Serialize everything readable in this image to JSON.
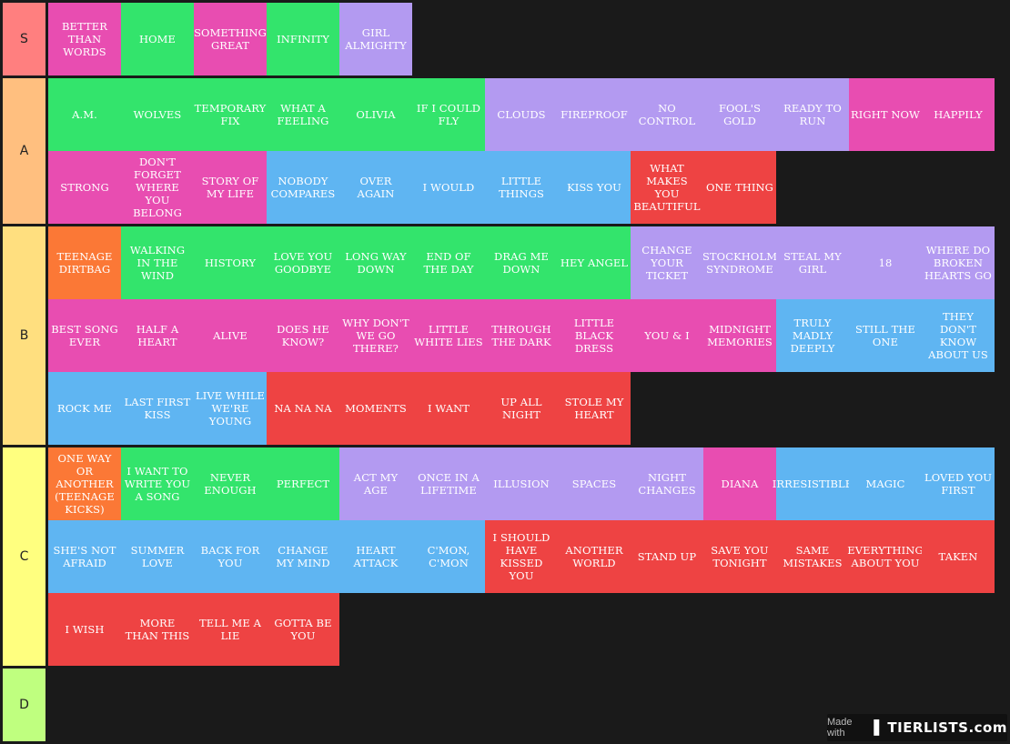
{
  "colors": {
    "pink": "#e84db1",
    "green": "#33e46c",
    "lavender": "#b39af1",
    "blue": "#5fb5f2",
    "red": "#ee4343",
    "orange": "#fb7836"
  },
  "tiers": [
    {
      "label": "S",
      "color": "#ff7f7f",
      "rows": 1,
      "items": [
        {
          "text": "BETTER THAN WORDS",
          "color": "pink"
        },
        {
          "text": "HOME",
          "color": "green"
        },
        {
          "text": "SOMETHING GREAT",
          "color": "pink"
        },
        {
          "text": "INFINITY",
          "color": "green"
        },
        {
          "text": "GIRL ALMIGHTY",
          "color": "lavender"
        }
      ]
    },
    {
      "label": "A",
      "color": "#ffbf7f",
      "rows": 2,
      "items": [
        {
          "text": "A.M.",
          "color": "green"
        },
        {
          "text": "WOLVES",
          "color": "green"
        },
        {
          "text": "TEMPORARY FIX",
          "color": "green"
        },
        {
          "text": "WHAT A FEELING",
          "color": "green"
        },
        {
          "text": "OLIVIA",
          "color": "green"
        },
        {
          "text": "IF I COULD FLY",
          "color": "green"
        },
        {
          "text": "CLOUDS",
          "color": "lavender"
        },
        {
          "text": "FIREPROOF",
          "color": "lavender"
        },
        {
          "text": "NO CONTROL",
          "color": "lavender"
        },
        {
          "text": "FOOL'S GOLD",
          "color": "lavender"
        },
        {
          "text": "READY TO RUN",
          "color": "lavender"
        },
        {
          "text": "RIGHT NOW",
          "color": "pink"
        },
        {
          "text": "HAPPILY",
          "color": "pink"
        },
        {
          "text": "STRONG",
          "color": "pink"
        },
        {
          "text": "DON'T FORGET WHERE YOU BELONG",
          "color": "pink"
        },
        {
          "text": "STORY OF MY LIFE",
          "color": "pink"
        },
        {
          "text": "NOBODY COMPARES",
          "color": "blue"
        },
        {
          "text": "OVER AGAIN",
          "color": "blue"
        },
        {
          "text": "I WOULD",
          "color": "blue"
        },
        {
          "text": "LITTLE THINGS",
          "color": "blue"
        },
        {
          "text": "KISS YOU",
          "color": "blue"
        },
        {
          "text": "WHAT MAKES YOU BEAUTIFUL",
          "color": "red"
        },
        {
          "text": "ONE THING",
          "color": "red"
        }
      ]
    },
    {
      "label": "B",
      "color": "#ffdf7f",
      "rows": 3,
      "items": [
        {
          "text": "TEENAGE DIRTBAG",
          "color": "orange"
        },
        {
          "text": "WALKING IN THE WIND",
          "color": "green"
        },
        {
          "text": "HISTORY",
          "color": "green"
        },
        {
          "text": "LOVE YOU GOODBYE",
          "color": "green"
        },
        {
          "text": "LONG WAY DOWN",
          "color": "green"
        },
        {
          "text": "END OF THE DAY",
          "color": "green"
        },
        {
          "text": "DRAG ME DOWN",
          "color": "green"
        },
        {
          "text": "HEY ANGEL",
          "color": "green"
        },
        {
          "text": "CHANGE YOUR TICKET",
          "color": "lavender"
        },
        {
          "text": "STOCKHOLM SYNDROME",
          "color": "lavender"
        },
        {
          "text": "STEAL MY GIRL",
          "color": "lavender"
        },
        {
          "text": "18",
          "color": "lavender"
        },
        {
          "text": "WHERE DO BROKEN HEARTS GO",
          "color": "lavender"
        },
        {
          "text": "BEST SONG EVER",
          "color": "pink"
        },
        {
          "text": "HALF A HEART",
          "color": "pink"
        },
        {
          "text": "ALIVE",
          "color": "pink"
        },
        {
          "text": "DOES HE KNOW?",
          "color": "pink"
        },
        {
          "text": "WHY DON'T WE GO THERE?",
          "color": "pink"
        },
        {
          "text": "LITTLE WHITE LIES",
          "color": "pink"
        },
        {
          "text": "THROUGH THE DARK",
          "color": "pink"
        },
        {
          "text": "LITTLE BLACK DRESS",
          "color": "pink"
        },
        {
          "text": "YOU & I",
          "color": "pink"
        },
        {
          "text": "MIDNIGHT MEMORIES",
          "color": "pink"
        },
        {
          "text": "TRULY MADLY DEEPLY",
          "color": "blue"
        },
        {
          "text": "STILL THE ONE",
          "color": "blue"
        },
        {
          "text": "THEY DON'T KNOW ABOUT US",
          "color": "blue"
        },
        {
          "text": "ROCK ME",
          "color": "blue"
        },
        {
          "text": "LAST FIRST KISS",
          "color": "blue"
        },
        {
          "text": "LIVE WHILE WE'RE YOUNG",
          "color": "blue"
        },
        {
          "text": "NA NA NA",
          "color": "red"
        },
        {
          "text": "MOMENTS",
          "color": "red"
        },
        {
          "text": "I WANT",
          "color": "red"
        },
        {
          "text": "UP ALL NIGHT",
          "color": "red"
        },
        {
          "text": "STOLE MY HEART",
          "color": "red"
        }
      ]
    },
    {
      "label": "C",
      "color": "#ffff7f",
      "rows": 3,
      "items": [
        {
          "text": "ONE WAY OR ANOTHER (TEENAGE KICKS)",
          "color": "orange"
        },
        {
          "text": "I WANT TO WRITE YOU A SONG",
          "color": "green"
        },
        {
          "text": "NEVER ENOUGH",
          "color": "green"
        },
        {
          "text": "PERFECT",
          "color": "green"
        },
        {
          "text": "ACT MY AGE",
          "color": "lavender"
        },
        {
          "text": "ONCE IN A LIFETIME",
          "color": "lavender"
        },
        {
          "text": "ILLUSION",
          "color": "lavender"
        },
        {
          "text": "SPACES",
          "color": "lavender"
        },
        {
          "text": "NIGHT CHANGES",
          "color": "lavender"
        },
        {
          "text": "DIANA",
          "color": "pink"
        },
        {
          "text": "IRRESISTIBLE",
          "color": "blue"
        },
        {
          "text": "MAGIC",
          "color": "blue"
        },
        {
          "text": "LOVED YOU FIRST",
          "color": "blue"
        },
        {
          "text": "SHE'S NOT AFRAID",
          "color": "blue"
        },
        {
          "text": "SUMMER LOVE",
          "color": "blue"
        },
        {
          "text": "BACK FOR YOU",
          "color": "blue"
        },
        {
          "text": "CHANGE MY MIND",
          "color": "blue"
        },
        {
          "text": "HEART ATTACK",
          "color": "blue"
        },
        {
          "text": "C'MON, C'MON",
          "color": "blue"
        },
        {
          "text": "I SHOULD HAVE KISSED YOU",
          "color": "red"
        },
        {
          "text": "ANOTHER WORLD",
          "color": "red"
        },
        {
          "text": "STAND UP",
          "color": "red"
        },
        {
          "text": "SAVE YOU TONIGHT",
          "color": "red"
        },
        {
          "text": "SAME MISTAKES",
          "color": "red"
        },
        {
          "text": "EVERYTHING ABOUT YOU",
          "color": "red"
        },
        {
          "text": "TAKEN",
          "color": "red"
        },
        {
          "text": "I WISH",
          "color": "red"
        },
        {
          "text": "MORE THAN THIS",
          "color": "red"
        },
        {
          "text": "TELL ME A LIE",
          "color": "red"
        },
        {
          "text": "GOTTA BE YOU",
          "color": "red"
        }
      ]
    },
    {
      "label": "D",
      "color": "#bfff7f",
      "rows": 1,
      "items": []
    }
  ],
  "watermark": {
    "prefix": "Made with",
    "logo": "TIERLISTS.com"
  }
}
